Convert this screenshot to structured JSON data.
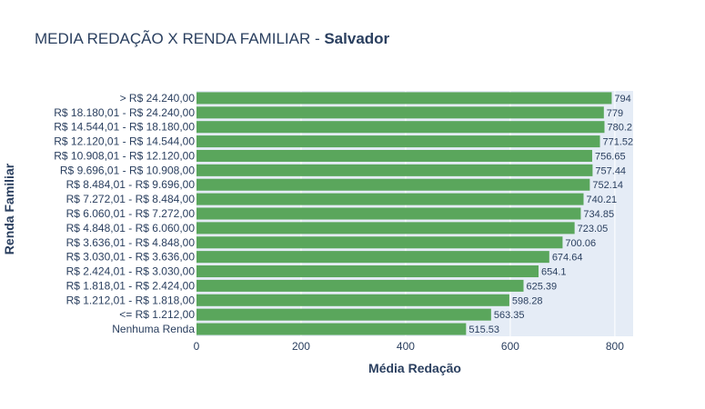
{
  "chart_data": {
    "type": "bar",
    "orientation": "horizontal",
    "title": "MEDIA REDAÇÃO X RENDA FAMILIAR - ",
    "title_bold": "Salvador",
    "xlabel": "Média Redação",
    "ylabel": "Renda Familiar",
    "xlim": [
      0,
      835
    ],
    "xticks": [
      0,
      200,
      400,
      600,
      800
    ],
    "grid": true,
    "bar_color": "#5aa65c",
    "plot_bg": "#e5ecf6",
    "categories": [
      "> R$ 24.240,00",
      "R$ 18.180,01 - R$ 24.240,00",
      "R$ 14.544,01 - R$ 18.180,00",
      "R$ 12.120,01 - R$ 14.544,00",
      "R$ 10.908,01 - R$ 12.120,00",
      "R$ 9.696,01 - R$ 10.908,00",
      "R$ 8.484,01 - R$ 9.696,00",
      "R$ 7.272,01 - R$ 8.484,00",
      "R$ 6.060,01 - R$ 7.272,00",
      "R$ 4.848,01 - R$ 6.060,00",
      "R$ 3.636,01 - R$ 4.848,00",
      "R$ 3.030,01 - R$ 3.636,00",
      "R$ 2.424,01 - R$ 3.030,00",
      "R$ 1.818,01 - R$ 2.424,00",
      "R$ 1.212,01 - R$ 1.818,00",
      "<= R$ 1.212,00",
      "Nenhuma Renda"
    ],
    "values": [
      794,
      779,
      780.2,
      771.52,
      756.65,
      757.44,
      752.14,
      740.21,
      734.85,
      723.05,
      700.06,
      674.64,
      654.1,
      625.39,
      598.28,
      563.35,
      515.53
    ],
    "value_labels": [
      "794",
      "779",
      "780.2",
      "771.52",
      "756.65",
      "757.44",
      "752.14",
      "740.21",
      "734.85",
      "723.05",
      "700.06",
      "674.64",
      "654.1",
      "625.39",
      "598.28",
      "563.35",
      "515.53"
    ]
  }
}
